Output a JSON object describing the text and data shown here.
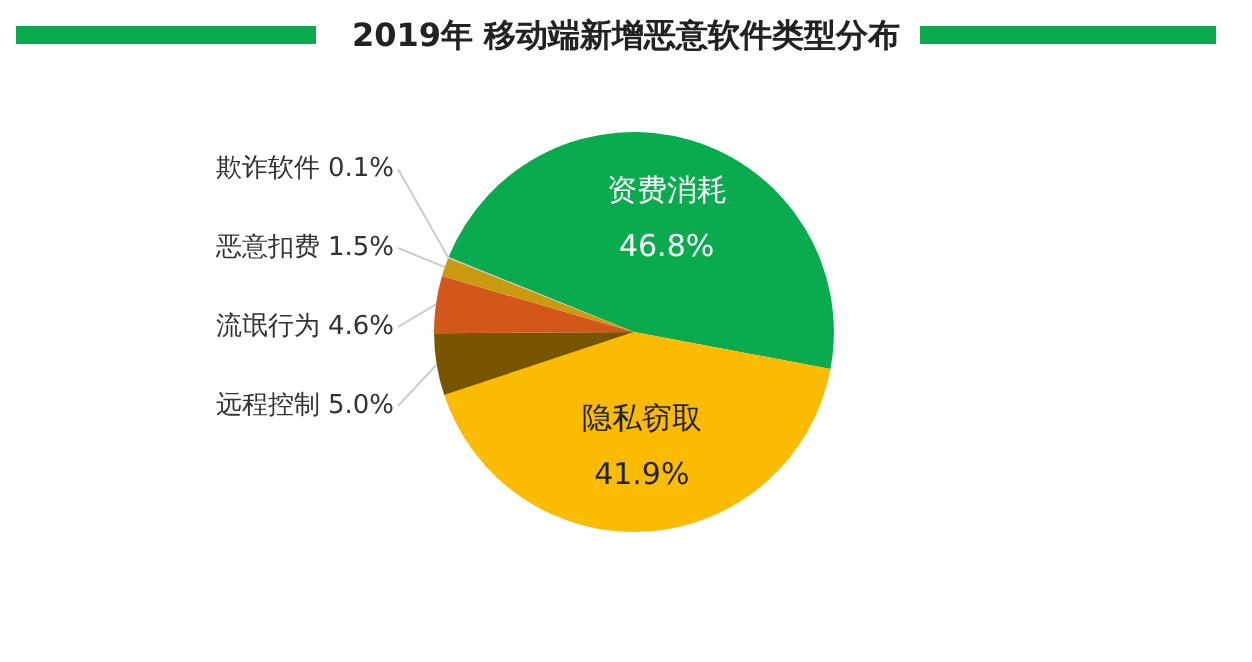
{
  "chart_data": {
    "type": "pie",
    "title": "2019年 移动端新增恶意软件类型分布",
    "categories": [
      "资费消耗",
      "隐私窃取",
      "远程控制",
      "流氓行为",
      "恶意扣费",
      "欺诈软件"
    ],
    "values": [
      46.8,
      41.9,
      5.0,
      4.6,
      1.5,
      0.1
    ],
    "value_labels": [
      "46.8%",
      "41.9%",
      "5.0%",
      "4.6%",
      "1.5%",
      "0.1%"
    ],
    "colors": [
      "#0aab4e",
      "#fbbb00",
      "#7a5500",
      "#d2581a",
      "#c99a10",
      "#bfbfbf"
    ],
    "legend": false
  }
}
